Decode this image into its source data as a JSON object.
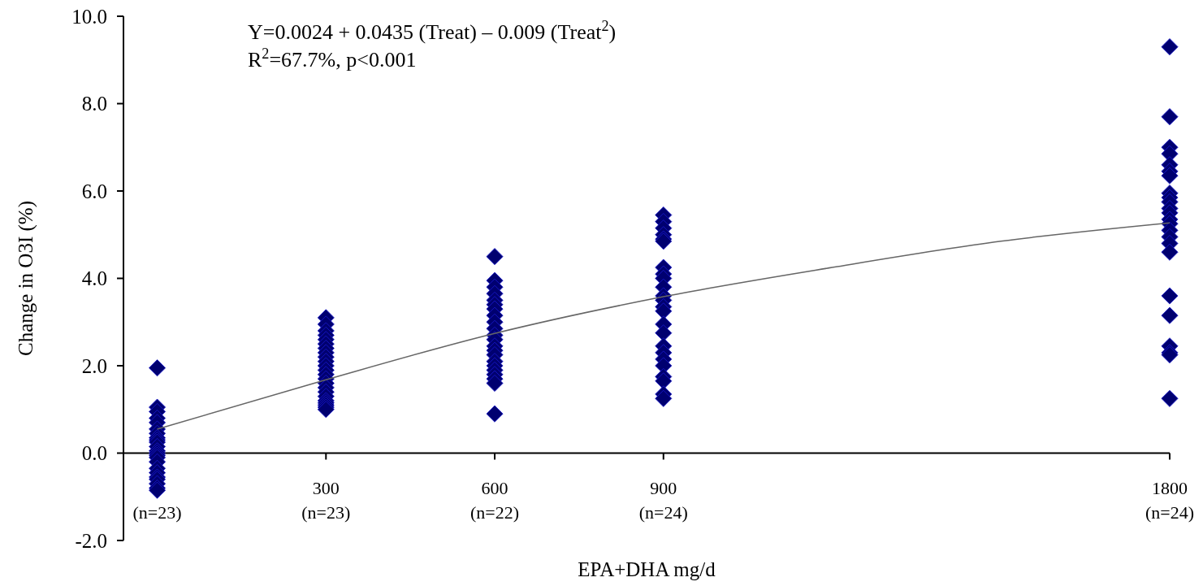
{
  "chart_data": {
    "type": "scatter",
    "xlabel": "EPA+DHA mg/d",
    "ylabel": "Change in O3I (%)",
    "annotations": [
      "Y=0.0024 + 0.0435 (Treat) – 0.009 (Treat$^{2}$)",
      "R$^{2}$=67.7%, p<0.001",
      "(n=23)",
      "(n=23)",
      "(n=22)",
      "(n=24)",
      "(n=24)"
    ],
    "xlim": [
      -60,
      1800
    ],
    "ylim": [
      -2,
      10
    ],
    "xticks": [
      {
        "value": 0,
        "label": null
      },
      300,
      600,
      900,
      1800
    ],
    "yticks": [
      {
        "value": -2,
        "label": "-2.0"
      },
      {
        "value": 0,
        "label": "0.0"
      },
      {
        "value": 2,
        "label": "2.0"
      },
      {
        "value": 4,
        "label": "4.0"
      },
      {
        "value": 6,
        "label": "6.0"
      },
      {
        "value": 8,
        "label": "8.0"
      },
      {
        "value": 10,
        "label": "10.0"
      }
    ],
    "grid": false,
    "marker": "diamond",
    "series": [
      {
        "color": "#000070",
        "x": [
          0,
          0,
          0,
          0,
          0,
          0,
          0,
          0,
          0,
          0,
          0,
          0,
          0,
          0,
          0,
          0,
          0,
          0,
          0,
          0,
          0,
          0,
          0,
          300,
          300,
          300,
          300,
          300,
          300,
          300,
          300,
          300,
          300,
          300,
          300,
          300,
          300,
          300,
          300,
          300,
          300,
          300,
          300,
          300,
          300,
          300,
          600,
          600,
          600,
          600,
          600,
          600,
          600,
          600,
          600,
          600,
          600,
          600,
          600,
          600,
          600,
          600,
          600,
          600,
          600,
          600,
          600,
          600,
          900,
          900,
          900,
          900,
          900,
          900,
          900,
          900,
          900,
          900,
          900,
          900,
          900,
          900,
          900,
          900,
          900,
          900,
          900,
          900,
          900,
          900,
          900,
          900,
          1800,
          1800,
          1800,
          1800,
          1800,
          1800,
          1800,
          1800,
          1800,
          1800,
          1800,
          1800,
          1800,
          1800,
          1800,
          1800,
          1800,
          1800,
          1800,
          1800,
          1800,
          1800,
          1800,
          1800
        ],
        "values": [
          1.95,
          1.05,
          0.95,
          0.8,
          0.7,
          0.55,
          0.45,
          0.35,
          0.3,
          0.25,
          0.15,
          0.05,
          0.0,
          -0.05,
          -0.1,
          -0.2,
          -0.35,
          -0.45,
          -0.55,
          -0.6,
          -0.7,
          -0.8,
          -0.85,
          3.1,
          2.95,
          2.8,
          2.7,
          2.6,
          2.5,
          2.4,
          2.3,
          2.2,
          2.1,
          2.0,
          1.9,
          1.8,
          1.7,
          1.6,
          1.5,
          1.4,
          1.3,
          1.2,
          1.15,
          1.1,
          1.05,
          1.0,
          4.5,
          3.95,
          3.8,
          3.65,
          3.5,
          3.4,
          3.3,
          3.15,
          3.0,
          2.85,
          2.7,
          2.6,
          2.45,
          2.35,
          2.25,
          2.1,
          2.0,
          1.9,
          1.8,
          1.7,
          1.6,
          0.9,
          5.45,
          5.3,
          5.15,
          5.0,
          4.9,
          4.85,
          4.25,
          4.1,
          4.0,
          3.8,
          3.6,
          3.5,
          3.35,
          3.25,
          2.95,
          2.75,
          2.45,
          2.3,
          2.15,
          2.0,
          1.75,
          1.65,
          1.35,
          1.25,
          9.3,
          7.7,
          7.0,
          6.85,
          6.6,
          6.45,
          6.35,
          5.95,
          5.85,
          5.75,
          5.6,
          5.5,
          5.35,
          5.25,
          5.1,
          4.95,
          4.8,
          4.6,
          3.6,
          3.15,
          2.45,
          2.3,
          2.25,
          1.25
        ]
      },
      {
        "type": "line",
        "color": "#666666",
        "marker": "none",
        "line_style": "solid",
        "x": [
          0,
          300,
          600,
          900,
          1200,
          1500,
          1800
        ],
        "values": [
          0.55,
          1.68,
          2.74,
          3.58,
          4.25,
          4.85,
          5.27
        ]
      }
    ]
  }
}
